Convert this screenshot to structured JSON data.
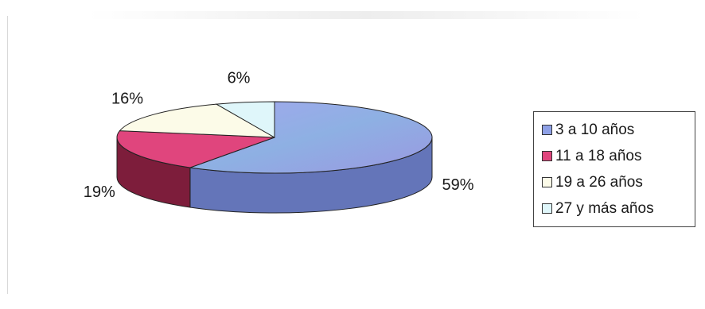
{
  "chart_data": {
    "type": "pie",
    "categories": [
      "3 a 10 años",
      "11 a 18 años",
      "19 a 26 años",
      "27 y más años"
    ],
    "values": [
      59,
      19,
      16,
      6
    ],
    "labels": [
      "59%",
      "19%",
      "16%",
      "6%"
    ],
    "colors": [
      "#8ea0e6",
      "#e0457d",
      "#fcfbe8",
      "#dff6fa"
    ],
    "side_colors": [
      "#6475b9",
      "#7d1d3b",
      "#d3d0bc",
      "#b9d0d6"
    ],
    "start_angle_deg": -90,
    "direction": "clockwise",
    "three_d": true,
    "legend_position": "right"
  }
}
